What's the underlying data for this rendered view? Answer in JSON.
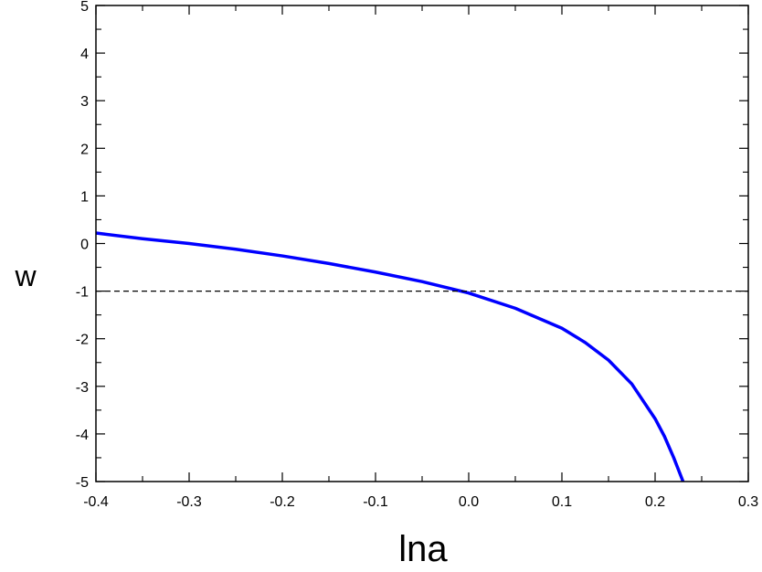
{
  "chart_data": {
    "type": "line",
    "title": "",
    "xlabel": "lna",
    "ylabel": "w",
    "xlim": [
      -0.4,
      0.3
    ],
    "ylim": [
      -5,
      5
    ],
    "x_ticks": [
      -0.4,
      -0.3,
      -0.2,
      -0.1,
      0.0,
      0.1,
      0.2,
      0.3
    ],
    "x_tick_labels": [
      "-0.4",
      "-0.3",
      "-0.2",
      "-0.1",
      "0.0",
      "0.1",
      "0.2",
      "0.3"
    ],
    "y_ticks": [
      -5,
      -4,
      -3,
      -2,
      -1,
      0,
      1,
      2,
      3,
      4,
      5
    ],
    "y_tick_labels": [
      "-5",
      "-4",
      "-3",
      "-2",
      "-1",
      "0",
      "1",
      "2",
      "3",
      "4",
      "5"
    ],
    "grid": false,
    "series": [
      {
        "color": "#0000ff",
        "style": "solid",
        "x": [
          -0.4,
          -0.35,
          -0.3,
          -0.25,
          -0.2,
          -0.15,
          -0.1,
          -0.05,
          0.0,
          0.05,
          0.1,
          0.125,
          0.15,
          0.175,
          0.2,
          0.21,
          0.22,
          0.23
        ],
        "y": [
          0.22,
          0.1,
          0.0,
          -0.12,
          -0.26,
          -0.42,
          -0.6,
          -0.8,
          -1.04,
          -1.36,
          -1.78,
          -2.08,
          -2.45,
          -2.95,
          -3.68,
          -4.05,
          -4.5,
          -5.0
        ]
      },
      {
        "color": "#000000",
        "style": "dashed",
        "x": [
          -0.4,
          0.3
        ],
        "y": [
          -1,
          -1
        ]
      }
    ]
  }
}
